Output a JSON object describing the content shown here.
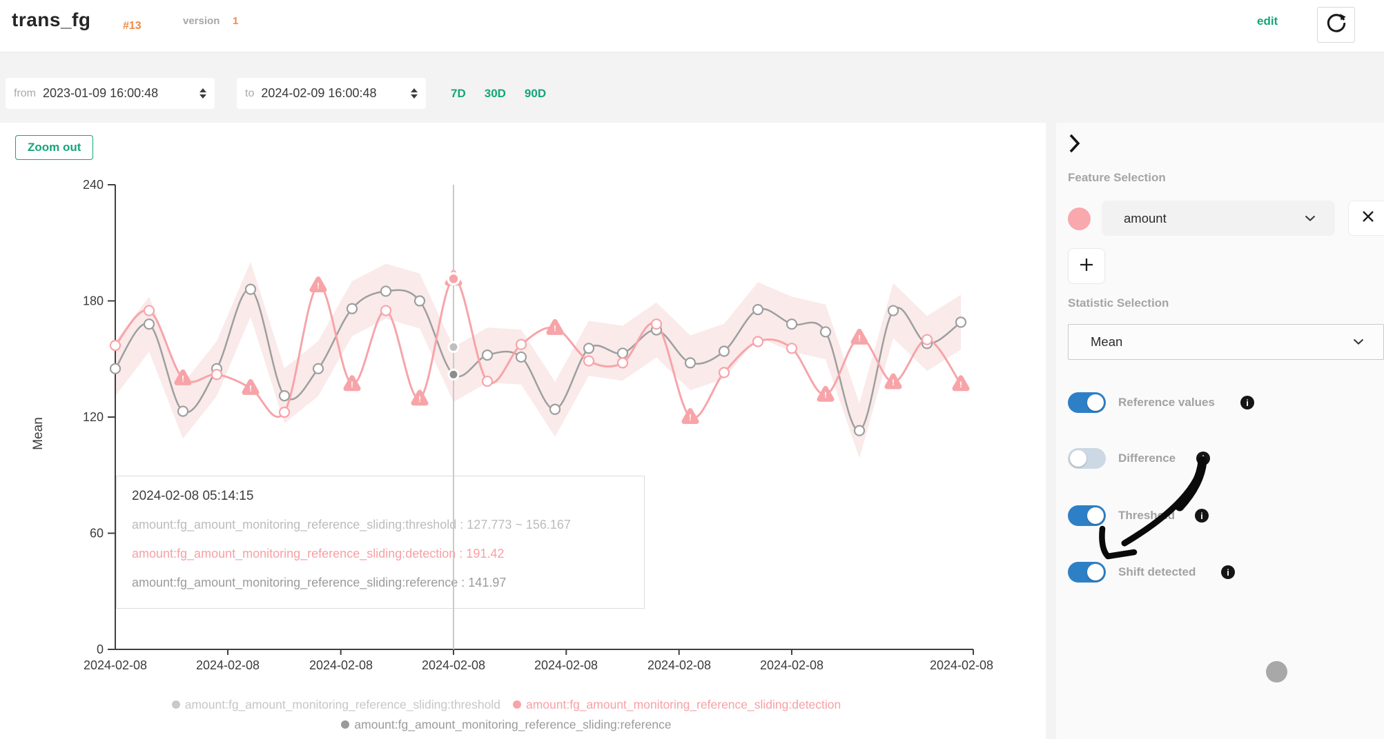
{
  "header": {
    "title": "trans_fg",
    "badge": "#13",
    "version_label": "version",
    "version_value": "1",
    "edit_label": "edit"
  },
  "filters": {
    "from_label": "from",
    "from_value": "2023-01-09 16:00:48",
    "to_label": "to",
    "to_value": "2024-02-09 16:00:48",
    "quick_ranges": [
      "7D",
      "30D",
      "90D"
    ]
  },
  "chart": {
    "zoom_out_label": "Zoom out"
  },
  "chart_data": {
    "type": "line",
    "ylabel": "Mean",
    "ylim": [
      0,
      240
    ],
    "yticks": [
      0,
      60,
      120,
      180,
      240
    ],
    "x_tick_label": "2024-02-08",
    "x_tick_count": 8,
    "grid": false,
    "legend_position": "bottom",
    "series": [
      {
        "name": "amount:fg_amount_monitoring_reference_sliding:threshold",
        "type": "band",
        "based_on": "reference",
        "half_width": 14.197,
        "color": "#c9c9c9",
        "fill": "#faeaea"
      },
      {
        "name": "amount:fg_amount_monitoring_reference_sliding:reference",
        "type": "line",
        "color": "#9e9e9e",
        "values": [
          145,
          168,
          123,
          145,
          186,
          131,
          145,
          176,
          185,
          180,
          141.97,
          152,
          151,
          124,
          155.5,
          153,
          165,
          148,
          154,
          175.5,
          168,
          164,
          113,
          175,
          158,
          169
        ]
      },
      {
        "name": "amount:fg_amount_monitoring_reference_sliding:detection",
        "type": "line",
        "color": "#f7a4a9",
        "values": [
          157,
          175,
          140,
          142,
          135,
          122.5,
          188,
          137,
          175,
          129.5,
          191.42,
          138.5,
          157.5,
          166,
          149,
          148,
          168,
          120,
          143,
          159,
          155.5,
          131.5,
          161,
          138,
          160,
          137
        ],
        "shift_indices": [
          2,
          4,
          6,
          7,
          9,
          10,
          13,
          17,
          21,
          22,
          23,
          25
        ]
      }
    ],
    "hovered_index": 10,
    "hovered_values": {
      "detection": 191.42,
      "reference": 141.97,
      "threshold_low": 127.773,
      "threshold_high": 156.167
    }
  },
  "tooltip": {
    "title": "2024-02-08 05:14:15",
    "rows": [
      {
        "text": "amount:fg_amount_monitoring_reference_sliding:threshold : 127.773 ~ 156.167",
        "color": "#bcbcbc"
      },
      {
        "text": "amount:fg_amount_monitoring_reference_sliding:detection : 191.42",
        "color": "#f7a0a5"
      },
      {
        "text": "amount:fg_amount_monitoring_reference_sliding:reference : 141.97",
        "color": "#9b9b9b"
      }
    ]
  },
  "legend": {
    "items": [
      {
        "label": "amount:fg_amount_monitoring_reference_sliding:threshold",
        "dot_color": "#c9c9c9",
        "text_color": "#c6c6c6"
      },
      {
        "label": "amount:fg_amount_monitoring_reference_sliding:detection",
        "dot_color": "#f7a4a9",
        "text_color": "#f7a0a5"
      },
      {
        "label": "amount:fg_amount_monitoring_reference_sliding:reference",
        "dot_color": "#9a9a9a",
        "text_color": "#9a9a9a"
      }
    ]
  },
  "sidebar": {
    "feature_heading": "Feature Selection",
    "feature_select_value": "amount",
    "feature_color": "#f9a8ad",
    "statistic_heading": "Statistic Selection",
    "statistic_select_value": "Mean",
    "toggles": [
      {
        "label": "Reference values",
        "state": "on",
        "swatch_color": "#a8a8a8"
      },
      {
        "label": "Difference",
        "state": "off"
      },
      {
        "label": "Threshold",
        "state": "on"
      },
      {
        "label": "Shift detected",
        "state": "on"
      }
    ]
  },
  "colors": {
    "accent_green": "#14a579",
    "accent_orange": "#ee8a49",
    "toggle_on": "#2e80c6",
    "toggle_off": "#ccd8e4",
    "axis": "#3f3f3f",
    "crosshair": "#c9c9c9"
  }
}
